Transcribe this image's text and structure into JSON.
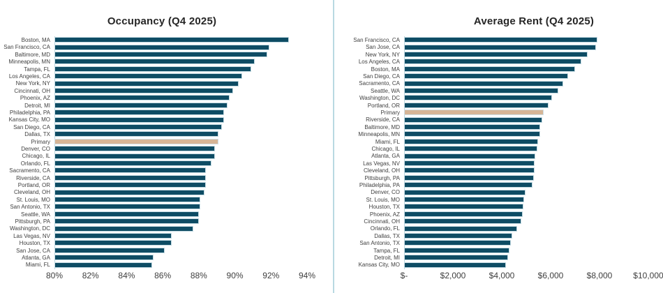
{
  "colors": {
    "background": "#ffffff",
    "bar": "#0e4c64",
    "highlight_bar": "#d6b596",
    "bar_border": "#c3dae2",
    "axis_line": "#b9d9e2",
    "divider_line": "#b9d9e2",
    "label_text": "#3f3f3f",
    "title_text": "#262626"
  },
  "chart_data": [
    {
      "type": "bar",
      "orientation": "horizontal",
      "title": "Occupancy (Q4 2025)",
      "unit": "percent",
      "xlabel": "",
      "ylabel": "",
      "xlim": [
        80,
        94
      ],
      "x_ticks": [
        80,
        82,
        84,
        86,
        88,
        90,
        92,
        94
      ],
      "x_tick_labels": [
        "80%",
        "82%",
        "84%",
        "86%",
        "88%",
        "90%",
        "92%",
        "94%"
      ],
      "grid": false,
      "legend": false,
      "highlight_category": "Primary",
      "categories": [
        "Boston, MA",
        "San Francisco, CA",
        "Baltimore, MD",
        "Minneapolis, MN",
        "Tampa, FL",
        "Los Angeles, CA",
        "New York, NY",
        "Cincinnati, OH",
        "Phoenix, AZ",
        "Detroit, MI",
        "Philadelphia, PA",
        "Kansas City, MO",
        "San Diego, CA",
        "Dallas, TX",
        "Primary",
        "Denver, CO",
        "Chicago, IL",
        "Orlando, FL",
        "Sacramento, CA",
        "Riverside, CA",
        "Portland, OR",
        "Cleveland, OH",
        "St. Louis, MO",
        "San Antonio, TX",
        "Seattle, WA",
        "Pittsburgh, PA",
        "Washington, DC",
        "Las Vegas, NV",
        "Houston, TX",
        "San Jose, CA",
        "Atlanta, GA",
        "Miami, FL"
      ],
      "values": [
        93.0,
        91.9,
        91.8,
        91.1,
        90.9,
        90.4,
        90.2,
        89.9,
        89.7,
        89.6,
        89.4,
        89.4,
        89.3,
        89.1,
        89.1,
        88.9,
        88.9,
        88.7,
        88.4,
        88.4,
        88.4,
        88.3,
        88.1,
        88.1,
        88.0,
        88.0,
        87.7,
        86.5,
        86.5,
        86.1,
        85.5,
        85.4
      ]
    },
    {
      "type": "bar",
      "orientation": "horizontal",
      "title": "Average Rent (Q4 2025)",
      "unit": "USD",
      "xlabel": "",
      "ylabel": "",
      "xlim": [
        0,
        10000
      ],
      "x_ticks": [
        0,
        2000,
        4000,
        6000,
        8000,
        10000
      ],
      "x_tick_labels": [
        "$-",
        "$2,000",
        "$4,000",
        "$6,000",
        "$8,000",
        "$10,000"
      ],
      "grid": false,
      "legend": false,
      "highlight_category": "Primary",
      "categories": [
        "San Francisco, CA",
        "San Jose, CA",
        "New York, NY",
        "Los Angeles, CA",
        "Boston, MA",
        "San Diego, CA",
        "Sacramento, CA",
        "Seattle, WA",
        "Washington, DC",
        "Portland, OR",
        "Primary",
        "Riverside, CA",
        "Baltimore, MD",
        "Minneapolis, MN",
        "Miami, FL",
        "Chicago, IL",
        "Atlanta, GA",
        "Las Vegas, NV",
        "Cleveland, OH",
        "Pittsburgh, PA",
        "Philadelphia, PA",
        "Denver, CO",
        "St. Louis, MO",
        "Houston, TX",
        "Phoenix, AZ",
        "Cincinnati, OH",
        "Orlando, FL",
        "Dallas, TX",
        "San Antonio, TX",
        "Tampa, FL",
        "Detroit, MI",
        "Kansas City, MO"
      ],
      "values": [
        7900,
        7850,
        7500,
        7250,
        7000,
        6700,
        6500,
        6300,
        6050,
        5900,
        5700,
        5650,
        5570,
        5560,
        5490,
        5460,
        5370,
        5340,
        5330,
        5310,
        5260,
        4970,
        4920,
        4890,
        4850,
        4800,
        4630,
        4430,
        4380,
        4320,
        4260,
        4180
      ]
    }
  ]
}
